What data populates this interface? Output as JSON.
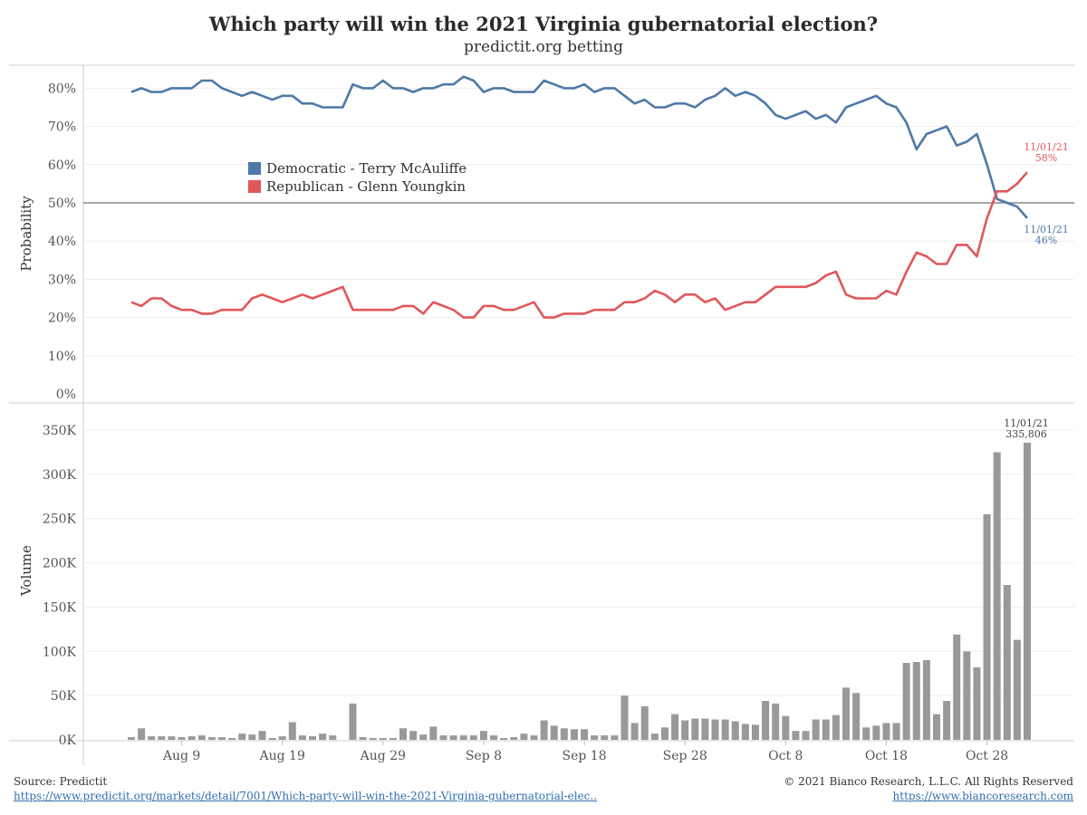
{
  "header": {
    "title": "Which party will win the 2021 Virginia gubernatorial election?",
    "subtitle": "predictit.org betting"
  },
  "footer": {
    "source_label": "Source: Predictit",
    "source_link": "https://www.predictit.org/markets/detail/7001/Which-party-will-win-the-2021-Virginia-gubernatorial-elec..",
    "copyright": "© 2021 Bianco Research, L.L.C. All Rights Reserved",
    "site_link": "https://www.biancoresearch.com"
  },
  "colors": {
    "dem": "#4e79a7",
    "rep": "#e15759",
    "volume": "#999999",
    "reference": "#888888"
  },
  "chart_data": [
    {
      "type": "line",
      "ylabel": "Probability",
      "ylim": [
        0,
        85
      ],
      "yticks": [
        "0%",
        "10%",
        "20%",
        "30%",
        "40%",
        "50%",
        "60%",
        "70%",
        "80%"
      ],
      "reference_line": 50,
      "legend_position": "upper-left",
      "series": [
        {
          "name": "Democratic - Terry McAuliffe",
          "values": [
            79,
            80,
            79,
            79,
            80,
            80,
            80,
            82,
            82,
            80,
            79,
            78,
            79,
            78,
            77,
            78,
            78,
            76,
            76,
            75,
            75,
            75,
            81,
            80,
            80,
            82,
            80,
            80,
            79,
            80,
            80,
            81,
            81,
            83,
            82,
            79,
            80,
            80,
            79,
            79,
            79,
            82,
            81,
            80,
            80,
            81,
            79,
            80,
            80,
            78,
            76,
            77,
            75,
            75,
            76,
            76,
            75,
            77,
            78,
            80,
            78,
            79,
            78,
            76,
            73,
            72,
            73,
            74,
            72,
            73,
            71,
            75,
            76,
            77,
            78,
            76,
            75,
            71,
            64,
            68,
            69,
            70,
            65,
            66,
            68,
            60,
            51,
            50,
            49,
            46
          ],
          "end_label_date": "11/01/21",
          "end_label_value": "46%"
        },
        {
          "name": "Republican - Glenn Youngkin",
          "values": [
            24,
            23,
            25,
            25,
            23,
            22,
            22,
            21,
            21,
            22,
            22,
            22,
            25,
            26,
            25,
            24,
            25,
            26,
            25,
            26,
            27,
            28,
            22,
            22,
            22,
            22,
            22,
            23,
            23,
            21,
            24,
            23,
            22,
            20,
            20,
            23,
            23,
            22,
            22,
            23,
            24,
            20,
            20,
            21,
            21,
            21,
            22,
            22,
            22,
            24,
            24,
            25,
            27,
            26,
            24,
            26,
            26,
            24,
            25,
            22,
            23,
            24,
            24,
            26,
            28,
            28,
            28,
            28,
            29,
            31,
            32,
            26,
            25,
            25,
            25,
            27,
            26,
            32,
            37,
            36,
            34,
            34,
            39,
            39,
            36,
            46,
            53,
            53,
            55,
            58
          ],
          "end_label_date": "11/01/21",
          "end_label_value": "58%"
        }
      ]
    },
    {
      "type": "bar",
      "ylabel": "Volume",
      "ylim": [
        0,
        370000
      ],
      "yticks": [
        "0K",
        "50K",
        "100K",
        "150K",
        "200K",
        "250K",
        "300K",
        "350K"
      ],
      "values": [
        3000,
        13000,
        4000,
        4000,
        4000,
        3000,
        4000,
        5000,
        3000,
        3000,
        2000,
        7000,
        6000,
        10000,
        2000,
        4000,
        20000,
        5000,
        4000,
        7000,
        5000,
        0,
        41000,
        3000,
        2000,
        2000,
        2000,
        13000,
        10000,
        6000,
        15000,
        5000,
        5000,
        5000,
        5000,
        10000,
        5000,
        2000,
        3000,
        7000,
        5000,
        22000,
        16000,
        13000,
        12000,
        12000,
        5000,
        5000,
        5000,
        50000,
        19000,
        38000,
        7000,
        14000,
        29000,
        22000,
        24000,
        24000,
        23000,
        23000,
        21000,
        18000,
        17000,
        44000,
        41000,
        27000,
        10000,
        10000,
        23000,
        23000,
        28000,
        59000,
        53000,
        14000,
        16000,
        19000,
        19000,
        87000,
        88000,
        90000,
        29000,
        44000,
        119000,
        100000,
        82000,
        255000,
        325000,
        175000,
        113000,
        335806
      ],
      "end_label_date": "11/01/21",
      "end_label_value": "335,806"
    }
  ],
  "xaxis": {
    "ticks": [
      "Aug 9",
      "Aug 19",
      "Aug 29",
      "Sep 8",
      "Sep 18",
      "Sep 28",
      "Oct 8",
      "Oct 18",
      "Oct 28"
    ]
  }
}
